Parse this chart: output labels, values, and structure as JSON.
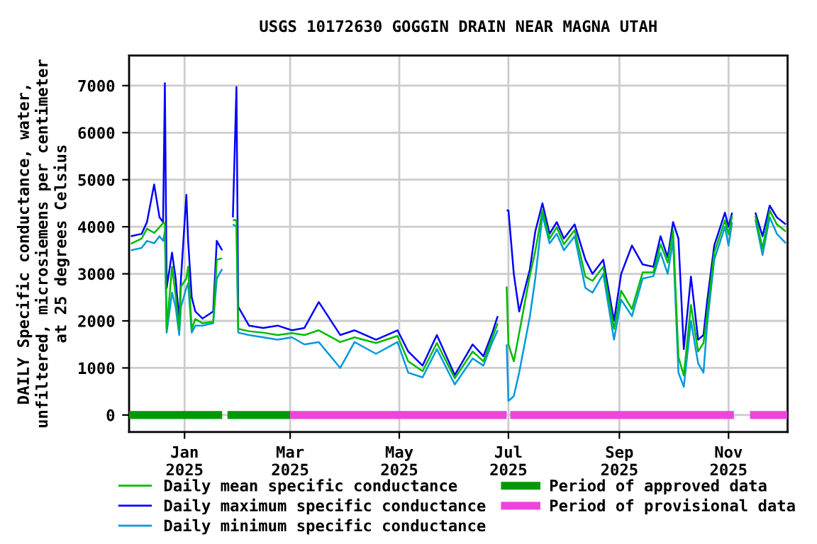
{
  "chart_data": {
    "type": "line",
    "title": "USGS 10172630 GOGGIN DRAIN NEAR MAGNA UTAH",
    "ylabel": "DAILY Specific conductance, water,\nunfiltered, microsiemens per centimeter\nat 25 degrees Celsius",
    "x": [
      "2024-12-02",
      "2024-12-08",
      "2024-12-11",
      "2024-12-15",
      "2024-12-18",
      "2024-12-20",
      "2024-12-21",
      "2024-12-22",
      "2024-12-25",
      "2024-12-27",
      "2024-12-29",
      "2024-12-30",
      "2025-01-02",
      "2025-01-03",
      "2025-01-05",
      "2025-01-07",
      "2025-01-11",
      "2025-01-17",
      "2025-01-19",
      "2025-01-22",
      "2025-01-25",
      "2025-01-28",
      "2025-01-30",
      "2025-01-31",
      "2025-02-06",
      "2025-02-14",
      "2025-02-22",
      "2025-03-02",
      "2025-03-09",
      "2025-03-17",
      "2025-03-29",
      "2025-04-06",
      "2025-04-18",
      "2025-04-30",
      "2025-05-06",
      "2025-05-14",
      "2025-05-22",
      "2025-06-01",
      "2025-06-11",
      "2025-06-17",
      "2025-06-22",
      "2025-06-25",
      "2025-06-28",
      "2025-06-30",
      "2025-07-01",
      "2025-07-04",
      "2025-07-07",
      "2025-07-13",
      "2025-07-16",
      "2025-07-20",
      "2025-07-24",
      "2025-07-28",
      "2025-08-01",
      "2025-08-07",
      "2025-08-13",
      "2025-08-17",
      "2025-08-23",
      "2025-08-29",
      "2025-09-02",
      "2025-09-08",
      "2025-09-14",
      "2025-09-20",
      "2025-09-24",
      "2025-09-28",
      "2025-10-01",
      "2025-10-04",
      "2025-10-07",
      "2025-10-11",
      "2025-10-15",
      "2025-10-18",
      "2025-10-20",
      "2025-10-24",
      "2025-10-30",
      "2025-11-01",
      "2025-11-03",
      "2025-11-09",
      "2025-11-16",
      "2025-11-20",
      "2025-11-24",
      "2025-11-28",
      "2025-12-03"
    ],
    "series": [
      {
        "name": "Daily mean specific conductance",
        "color": "#00bb00",
        "values": [
          3640,
          3750,
          3960,
          3870,
          3990,
          4080,
          4080,
          1830,
          3150,
          2550,
          1830,
          2730,
          2900,
          3150,
          1830,
          2040,
          1950,
          1980,
          3300,
          3330,
          null,
          4140,
          4140,
          1830,
          1780,
          1750,
          1700,
          1740,
          1700,
          1800,
          1550,
          1650,
          1530,
          1680,
          1140,
          930,
          1530,
          780,
          1350,
          1140,
          1650,
          1950,
          null,
          2730,
          1500,
          1140,
          1740,
          2970,
          3480,
          4350,
          3750,
          3990,
          3630,
          3930,
          2940,
          2850,
          3150,
          1830,
          2640,
          2250,
          3030,
          3030,
          3630,
          3240,
          3930,
          1230,
          840,
          2340,
          1350,
          1530,
          2130,
          3450,
          4140,
          3840,
          4230,
          null,
          4230,
          3540,
          4350,
          4050,
          3900
        ]
      },
      {
        "name": "Daily maximum specific conductance",
        "color": "#0000ff",
        "values": [
          3800,
          3850,
          4100,
          4900,
          4200,
          4100,
          7050,
          2700,
          3450,
          2900,
          2000,
          2900,
          4680,
          3700,
          2500,
          2200,
          2050,
          2200,
          3700,
          3500,
          null,
          4200,
          6970,
          2300,
          1900,
          1850,
          1900,
          1800,
          1850,
          2400,
          1700,
          1800,
          1600,
          1800,
          1350,
          1050,
          1700,
          850,
          1500,
          1250,
          1750,
          2100,
          null,
          4350,
          4350,
          3000,
          2200,
          3100,
          3900,
          4500,
          3850,
          4100,
          3750,
          4050,
          3300,
          3000,
          3300,
          2000,
          3000,
          3600,
          3200,
          3150,
          3800,
          3350,
          4100,
          3750,
          1400,
          2940,
          1600,
          1700,
          2400,
          3600,
          4300,
          4000,
          4300,
          null,
          4300,
          3800,
          4450,
          4200,
          4050
        ]
      },
      {
        "name": "Daily minimum specific conductance",
        "color": "#0099dd",
        "values": [
          3500,
          3550,
          3700,
          3650,
          3800,
          3700,
          3900,
          1750,
          2600,
          2300,
          1700,
          2300,
          2700,
          2800,
          1750,
          1900,
          1900,
          1950,
          2900,
          3100,
          null,
          4050,
          4000,
          1750,
          1700,
          1650,
          1600,
          1650,
          1500,
          1550,
          1000,
          1550,
          1300,
          1550,
          900,
          800,
          1400,
          650,
          1200,
          1050,
          1550,
          1800,
          null,
          1500,
          300,
          400,
          900,
          2100,
          2900,
          4250,
          3650,
          3850,
          3500,
          3800,
          2700,
          2600,
          3000,
          1600,
          2450,
          2100,
          2900,
          2950,
          3450,
          3000,
          3700,
          900,
          600,
          2000,
          1100,
          900,
          1900,
          3300,
          4000,
          3600,
          4100,
          null,
          4150,
          3400,
          4200,
          3850,
          3650
        ]
      },
      {
        "name": "Period of approved data",
        "color": "#009900",
        "x": [
          "2024-12-01",
          "2025-01-22",
          "2025-01-23",
          "2025-01-25",
          "2025-03-01"
        ],
        "values": [
          0,
          0,
          null,
          0,
          0
        ]
      },
      {
        "name": "Period of provisional data",
        "color": "#ee44dd",
        "x": [
          "2025-03-01",
          "2025-06-30",
          "2025-07-01",
          "2025-07-02",
          "2025-11-04",
          "2025-11-08",
          "2025-11-13",
          "2025-12-04"
        ],
        "values": [
          0,
          0,
          null,
          0,
          0,
          null,
          0,
          0
        ]
      }
    ],
    "xlim": [
      "2024-12-01",
      "2025-12-04"
    ],
    "xticks": [
      {
        "value": "2025-01-01",
        "label": "Jan\n2025"
      },
      {
        "value": "2025-03-01",
        "label": "Mar\n2025"
      },
      {
        "value": "2025-05-01",
        "label": "May\n2025"
      },
      {
        "value": "2025-07-01",
        "label": "Jul\n2025"
      },
      {
        "value": "2025-09-01",
        "label": "Sep\n2025"
      },
      {
        "value": "2025-11-01",
        "label": "Nov\n2025"
      }
    ],
    "ylim": [
      -360,
      7640
    ],
    "yticks": [
      0,
      1000,
      2000,
      3000,
      4000,
      5000,
      6000,
      7000
    ],
    "grid": true,
    "legend": "bottom"
  }
}
